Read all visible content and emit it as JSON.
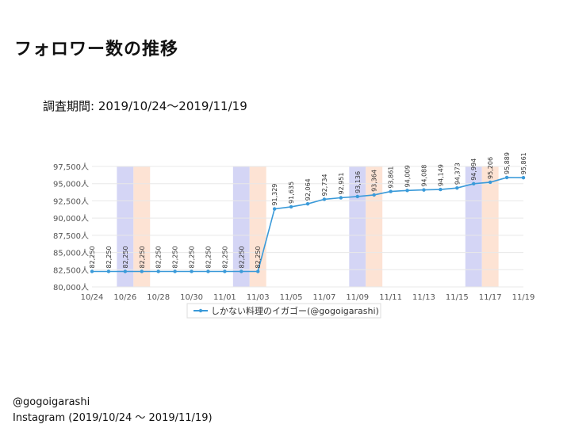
{
  "page": {
    "title": "フォロワー数の推移",
    "period": "調査期間: 2019/10/24〜2019/11/19",
    "footer_account": "@gogoigarashi",
    "footer_source": "Instagram (2019/10/24 〜 2019/11/19)"
  },
  "colors": {
    "line": "#3a9ad9",
    "weekend_sat": "#d4d5f5",
    "weekend_sun": "#fde3d4",
    "grid": "#e8e8e8",
    "axis_text": "#555555"
  },
  "chart_data": {
    "type": "line",
    "title": "",
    "xlabel": "",
    "ylabel": "",
    "ylim": [
      80000,
      97500
    ],
    "y_ticks": [
      80000,
      82500,
      85000,
      87500,
      90000,
      92500,
      95000,
      97500
    ],
    "y_tick_labels": [
      "80,000人",
      "82,500人",
      "85,000人",
      "87,500人",
      "90,000人",
      "92,500人",
      "95,000人",
      "97,500人"
    ],
    "x_tick_labels": [
      "10/24",
      "10/26",
      "10/28",
      "10/30",
      "11/01",
      "11/03",
      "11/05",
      "11/07",
      "11/09",
      "11/11",
      "11/13",
      "11/15",
      "11/17",
      "11/19"
    ],
    "x": [
      "10/24",
      "10/25",
      "10/26",
      "10/27",
      "10/28",
      "10/29",
      "10/30",
      "10/31",
      "11/01",
      "11/02",
      "11/03",
      "11/04",
      "11/05",
      "11/06",
      "11/07",
      "11/08",
      "11/09",
      "11/10",
      "11/11",
      "11/12",
      "11/13",
      "11/14",
      "11/15",
      "11/16",
      "11/17",
      "11/18",
      "11/19"
    ],
    "weekends_sat": [
      "10/26",
      "11/02",
      "11/09",
      "11/16"
    ],
    "weekends_sun": [
      "10/27",
      "11/03",
      "11/10",
      "11/17"
    ],
    "grid": true,
    "legend_position": "bottom",
    "series": [
      {
        "name": "しかない料理のイガゴー(@gogoigarashi)",
        "values": [
          82250,
          82250,
          82250,
          82250,
          82250,
          82250,
          82250,
          82250,
          82250,
          82250,
          82250,
          91329,
          91635,
          92064,
          92734,
          92951,
          93136,
          93364,
          93861,
          94009,
          94088,
          94149,
          94373,
          94994,
          95206,
          95889,
          95861
        ],
        "labels": [
          "82,250",
          "82,250",
          "82,250",
          "82,250",
          "82,250",
          "82,250",
          "82,250",
          "82,250",
          "82,250",
          "82,250",
          "82,250",
          "91,329",
          "91,635",
          "92,064",
          "92,734",
          "92,951",
          "93,136",
          "93,364",
          "93,861",
          "94,009",
          "94,088",
          "94,149",
          "94,373",
          "94,994",
          "95,206",
          "95,889",
          "95,861"
        ]
      }
    ]
  }
}
